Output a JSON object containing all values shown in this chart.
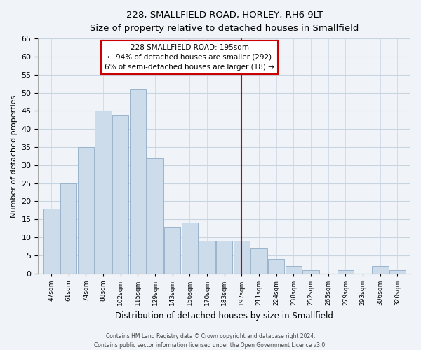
{
  "title": "228, SMALLFIELD ROAD, HORLEY, RH6 9LT",
  "subtitle": "Size of property relative to detached houses in Smallfield",
  "xlabel": "Distribution of detached houses by size in Smallfield",
  "ylabel": "Number of detached properties",
  "bar_labels": [
    "47sqm",
    "61sqm",
    "74sqm",
    "88sqm",
    "102sqm",
    "115sqm",
    "129sqm",
    "143sqm",
    "156sqm",
    "170sqm",
    "183sqm",
    "197sqm",
    "211sqm",
    "224sqm",
    "238sqm",
    "252sqm",
    "265sqm",
    "279sqm",
    "293sqm",
    "306sqm",
    "320sqm"
  ],
  "bar_values": [
    18,
    25,
    35,
    45,
    44,
    51,
    32,
    13,
    14,
    9,
    9,
    9,
    7,
    4,
    2,
    1,
    0,
    1,
    0,
    2,
    1
  ],
  "bar_color": "#cddceb",
  "bar_edge_color": "#9ab4cc",
  "marker_bar_index": 11,
  "annotation_title": "228 SMALLFIELD ROAD: 195sqm",
  "annotation_line1": "← 94% of detached houses are smaller (292)",
  "annotation_line2": "6% of semi-detached houses are larger (18) →",
  "ylim": [
    0,
    65
  ],
  "yticks": [
    0,
    5,
    10,
    15,
    20,
    25,
    30,
    35,
    40,
    45,
    50,
    55,
    60,
    65
  ],
  "footer_line1": "Contains HM Land Registry data © Crown copyright and database right 2024.",
  "footer_line2": "Contains public sector information licensed under the Open Government Licence v3.0.",
  "bg_color": "#f0f4f8",
  "grid_color": "#c8d4e0"
}
